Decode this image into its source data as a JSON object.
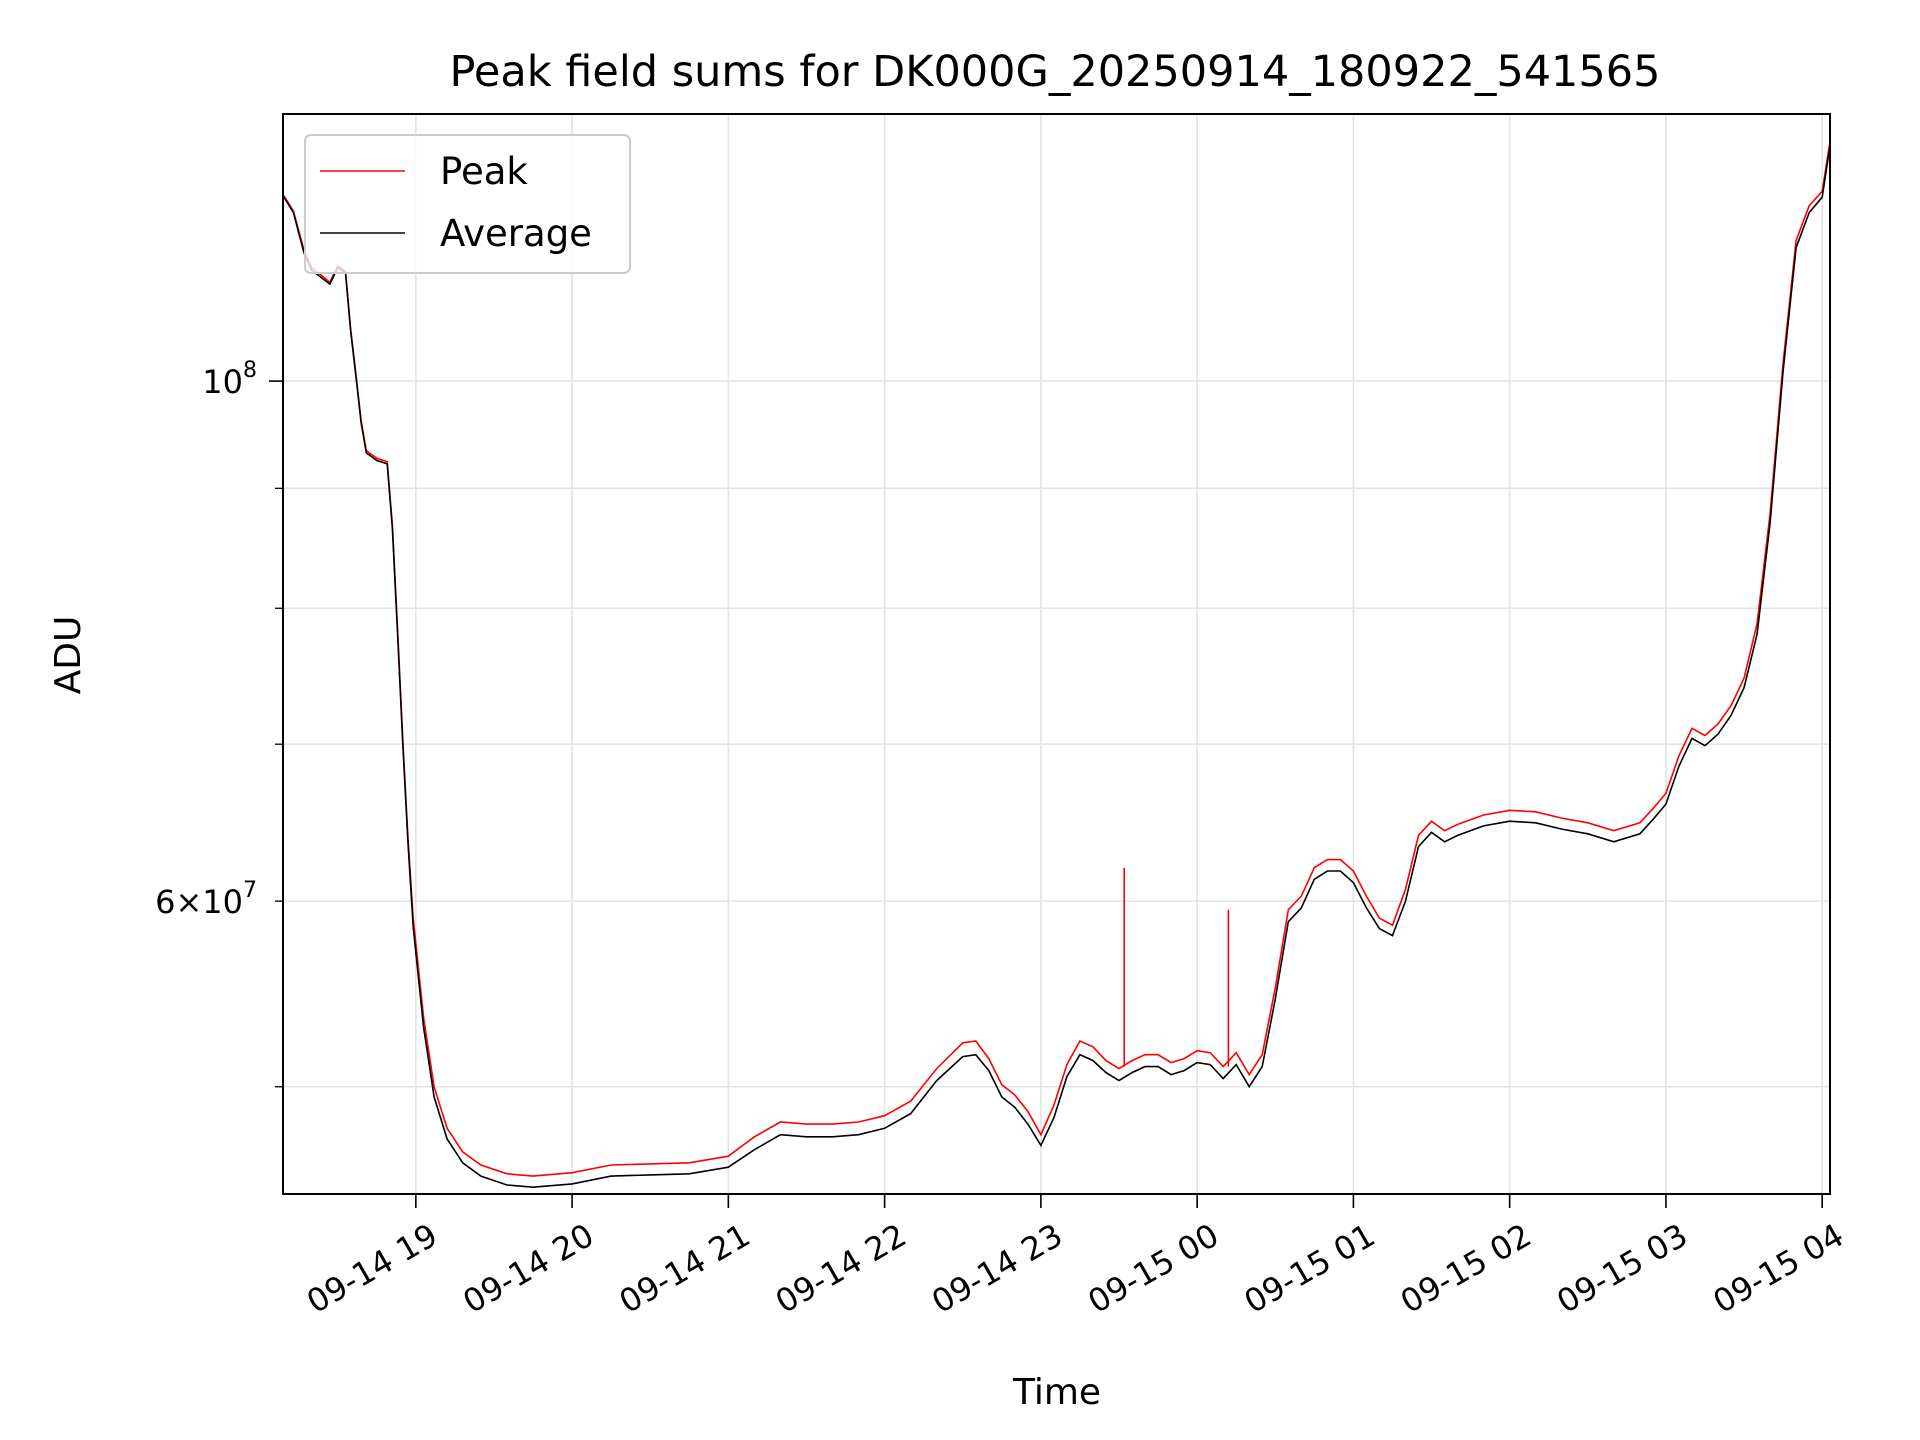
{
  "chart_data": {
    "type": "line",
    "title": "Peak field sums for DK000G_20250914_180922_541565",
    "xlabel": "Time",
    "ylabel": "ADU",
    "y_scale": "log",
    "xlim": [
      "2025-09-14 18:09",
      "2025-09-15 04:03"
    ],
    "ylim": [
      45000000,
      130000000
    ],
    "grid": true,
    "legend_position": "top-left",
    "x_ticks": [
      "2025-09-14 19:00",
      "2025-09-14 20:00",
      "2025-09-14 21:00",
      "2025-09-14 22:00",
      "2025-09-14 23:00",
      "2025-09-15 00:00",
      "2025-09-15 01:00",
      "2025-09-15 02:00",
      "2025-09-15 03:00",
      "2025-09-15 04:00"
    ],
    "x_tick_labels": [
      "09-14 19",
      "09-14 20",
      "09-14 21",
      "09-14 22",
      "09-14 23",
      "09-15 00",
      "09-15 01",
      "09-15 02",
      "09-15 03",
      "09-15 04"
    ],
    "y_major_ticks": [
      100000000
    ],
    "y_major_labels": [
      {
        "base": "10",
        "exp": "8"
      }
    ],
    "y_minor_ticks": [
      50000000,
      60000000,
      70000000,
      80000000,
      90000000
    ],
    "y_minor_labels": [
      {
        "value": 60000000,
        "mantissa": "6",
        "base": "10",
        "exp": "7"
      }
    ],
    "x": [
      "2025-09-14 18:09",
      "2025-09-14 18:13",
      "2025-09-14 18:17",
      "2025-09-14 18:20",
      "2025-09-14 18:27",
      "2025-09-14 18:30",
      "2025-09-14 18:33",
      "2025-09-14 18:35",
      "2025-09-14 18:37",
      "2025-09-14 18:39",
      "2025-09-14 18:41",
      "2025-09-14 18:45",
      "2025-09-14 18:49",
      "2025-09-14 18:51",
      "2025-09-14 18:53",
      "2025-09-14 18:55",
      "2025-09-14 18:57",
      "2025-09-14 18:59",
      "2025-09-14 19:03",
      "2025-09-14 19:07",
      "2025-09-14 19:12",
      "2025-09-14 19:18",
      "2025-09-14 19:25",
      "2025-09-14 19:35",
      "2025-09-14 19:45",
      "2025-09-14 20:00",
      "2025-09-14 20:15",
      "2025-09-14 20:30",
      "2025-09-14 20:45",
      "2025-09-14 21:00",
      "2025-09-14 21:10",
      "2025-09-14 21:20",
      "2025-09-14 21:30",
      "2025-09-14 21:40",
      "2025-09-14 21:50",
      "2025-09-14 22:00",
      "2025-09-14 22:10",
      "2025-09-14 22:20",
      "2025-09-14 22:30",
      "2025-09-14 22:35",
      "2025-09-14 22:40",
      "2025-09-14 22:45",
      "2025-09-14 22:50",
      "2025-09-14 22:55",
      "2025-09-14 23:00",
      "2025-09-14 23:05",
      "2025-09-14 23:10",
      "2025-09-14 23:15",
      "2025-09-14 23:20",
      "2025-09-14 23:25",
      "2025-09-14 23:30",
      "2025-09-14 23:35",
      "2025-09-14 23:40",
      "2025-09-14 23:45",
      "2025-09-14 23:50",
      "2025-09-14 23:55",
      "2025-09-15 00:00",
      "2025-09-15 00:05",
      "2025-09-15 00:10",
      "2025-09-15 00:15",
      "2025-09-15 00:20",
      "2025-09-15 00:25",
      "2025-09-15 00:30",
      "2025-09-15 00:35",
      "2025-09-15 00:40",
      "2025-09-15 00:45",
      "2025-09-15 00:50",
      "2025-09-15 00:55",
      "2025-09-15 01:00",
      "2025-09-15 01:05",
      "2025-09-15 01:10",
      "2025-09-15 01:15",
      "2025-09-15 01:20",
      "2025-09-15 01:25",
      "2025-09-15 01:30",
      "2025-09-15 01:35",
      "2025-09-15 01:40",
      "2025-09-15 01:50",
      "2025-09-15 02:00",
      "2025-09-15 02:10",
      "2025-09-15 02:20",
      "2025-09-15 02:30",
      "2025-09-15 02:40",
      "2025-09-15 02:50",
      "2025-09-15 02:55",
      "2025-09-15 03:00",
      "2025-09-15 03:05",
      "2025-09-15 03:10",
      "2025-09-15 03:15",
      "2025-09-15 03:20",
      "2025-09-15 03:25",
      "2025-09-15 03:30",
      "2025-09-15 03:35",
      "2025-09-15 03:40",
      "2025-09-15 03:45",
      "2025-09-15 03:50",
      "2025-09-15 03:55",
      "2025-09-15 04:00",
      "2025-09-15 04:03"
    ],
    "series": [
      {
        "name": "Average",
        "color": "#000000",
        "values": [
          120000000,
          118000000,
          113500000,
          111500000,
          110000000,
          111800000,
          111200000,
          105000000,
          100500000,
          96000000,
          93200000,
          92500000,
          92200000,
          86500000,
          78000000,
          70000000,
          63500000,
          58500000,
          53000000,
          49500000,
          47500000,
          46400000,
          45800000,
          45400000,
          45300000,
          45450000,
          45800000,
          45850000,
          45900000,
          46200000,
          47000000,
          47700000,
          47600000,
          47600000,
          47700000,
          48000000,
          48700000,
          50300000,
          51500000,
          51600000,
          50800000,
          49500000,
          49000000,
          48200000,
          47200000,
          48500000,
          50500000,
          51600000,
          51300000,
          50700000,
          50300000,
          50700000,
          51000000,
          51000000,
          50600000,
          50800000,
          51200000,
          51100000,
          50400000,
          51100000,
          50000000,
          51000000,
          54500000,
          58800000,
          59600000,
          61300000,
          61800000,
          61800000,
          61100000,
          59600000,
          58400000,
          58000000,
          60000000,
          63300000,
          64200000,
          63600000,
          64000000,
          64600000,
          64900000,
          64800000,
          64400000,
          64100000,
          63600000,
          64100000,
          65000000,
          66000000,
          68500000,
          70400000,
          69900000,
          70700000,
          72000000,
          74000000,
          78000000,
          87000000,
          101000000,
          114000000,
          118000000,
          119800000,
          126000000
        ]
      },
      {
        "name": "Peak",
        "color": "#ff0000",
        "values": [
          120100000,
          118200000,
          113800000,
          111800000,
          110200000,
          112000000,
          111400000,
          105200000,
          100700000,
          96200000,
          93400000,
          92700000,
          92400000,
          86800000,
          78300000,
          70300000,
          63800000,
          59000000,
          53500000,
          50000000,
          48000000,
          46900000,
          46300000,
          45900000,
          45800000,
          45950000,
          46300000,
          46350000,
          46400000,
          46700000,
          47600000,
          48300000,
          48200000,
          48200000,
          48300000,
          48600000,
          49300000,
          50900000,
          52200000,
          52300000,
          51400000,
          50100000,
          49600000,
          48800000,
          47700000,
          49100000,
          51100000,
          52300000,
          52000000,
          51300000,
          50900000,
          51300000,
          51600000,
          51600000,
          51200000,
          51400000,
          51800000,
          51700000,
          51000000,
          51700000,
          50600000,
          51600000,
          55100000,
          59500000,
          60300000,
          62000000,
          62500000,
          62500000,
          61800000,
          60300000,
          59000000,
          58600000,
          60700000,
          64000000,
          64900000,
          64300000,
          64700000,
          65300000,
          65600000,
          65500000,
          65100000,
          64800000,
          64300000,
          64800000,
          65700000,
          66700000,
          69200000,
          71100000,
          70600000,
          71400000,
          72700000,
          74700000,
          78800000,
          87800000,
          101800000,
          114800000,
          118800000,
          120500000,
          126500000
        ],
        "spikes": [
          {
            "x": "2025-09-14 23:32",
            "value": 62000000
          },
          {
            "x": "2025-09-15 00:12",
            "value": 59500000
          }
        ]
      }
    ]
  }
}
